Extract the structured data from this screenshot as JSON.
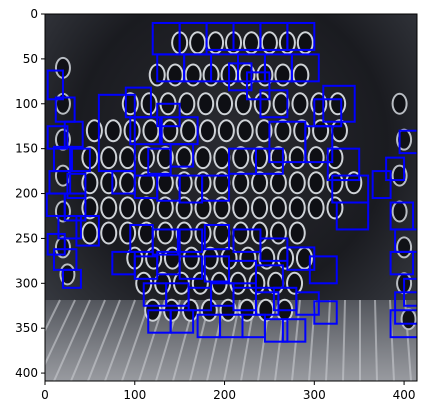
{
  "figure": {
    "x_ticks": [
      "0",
      "100",
      "200",
      "300",
      "400"
    ],
    "y_ticks": [
      "0",
      "50",
      "100",
      "150",
      "200",
      "250",
      "300",
      "350",
      "400"
    ],
    "box_color": "#0000ff",
    "axes_color": "#000000",
    "image_description_colors": {
      "background_dark": "#1f1f24",
      "pipe_rim": "#cfd3d8",
      "pipe_bore": "#0e0f14",
      "floor_pipes": "#7d7f86"
    }
  }
}
